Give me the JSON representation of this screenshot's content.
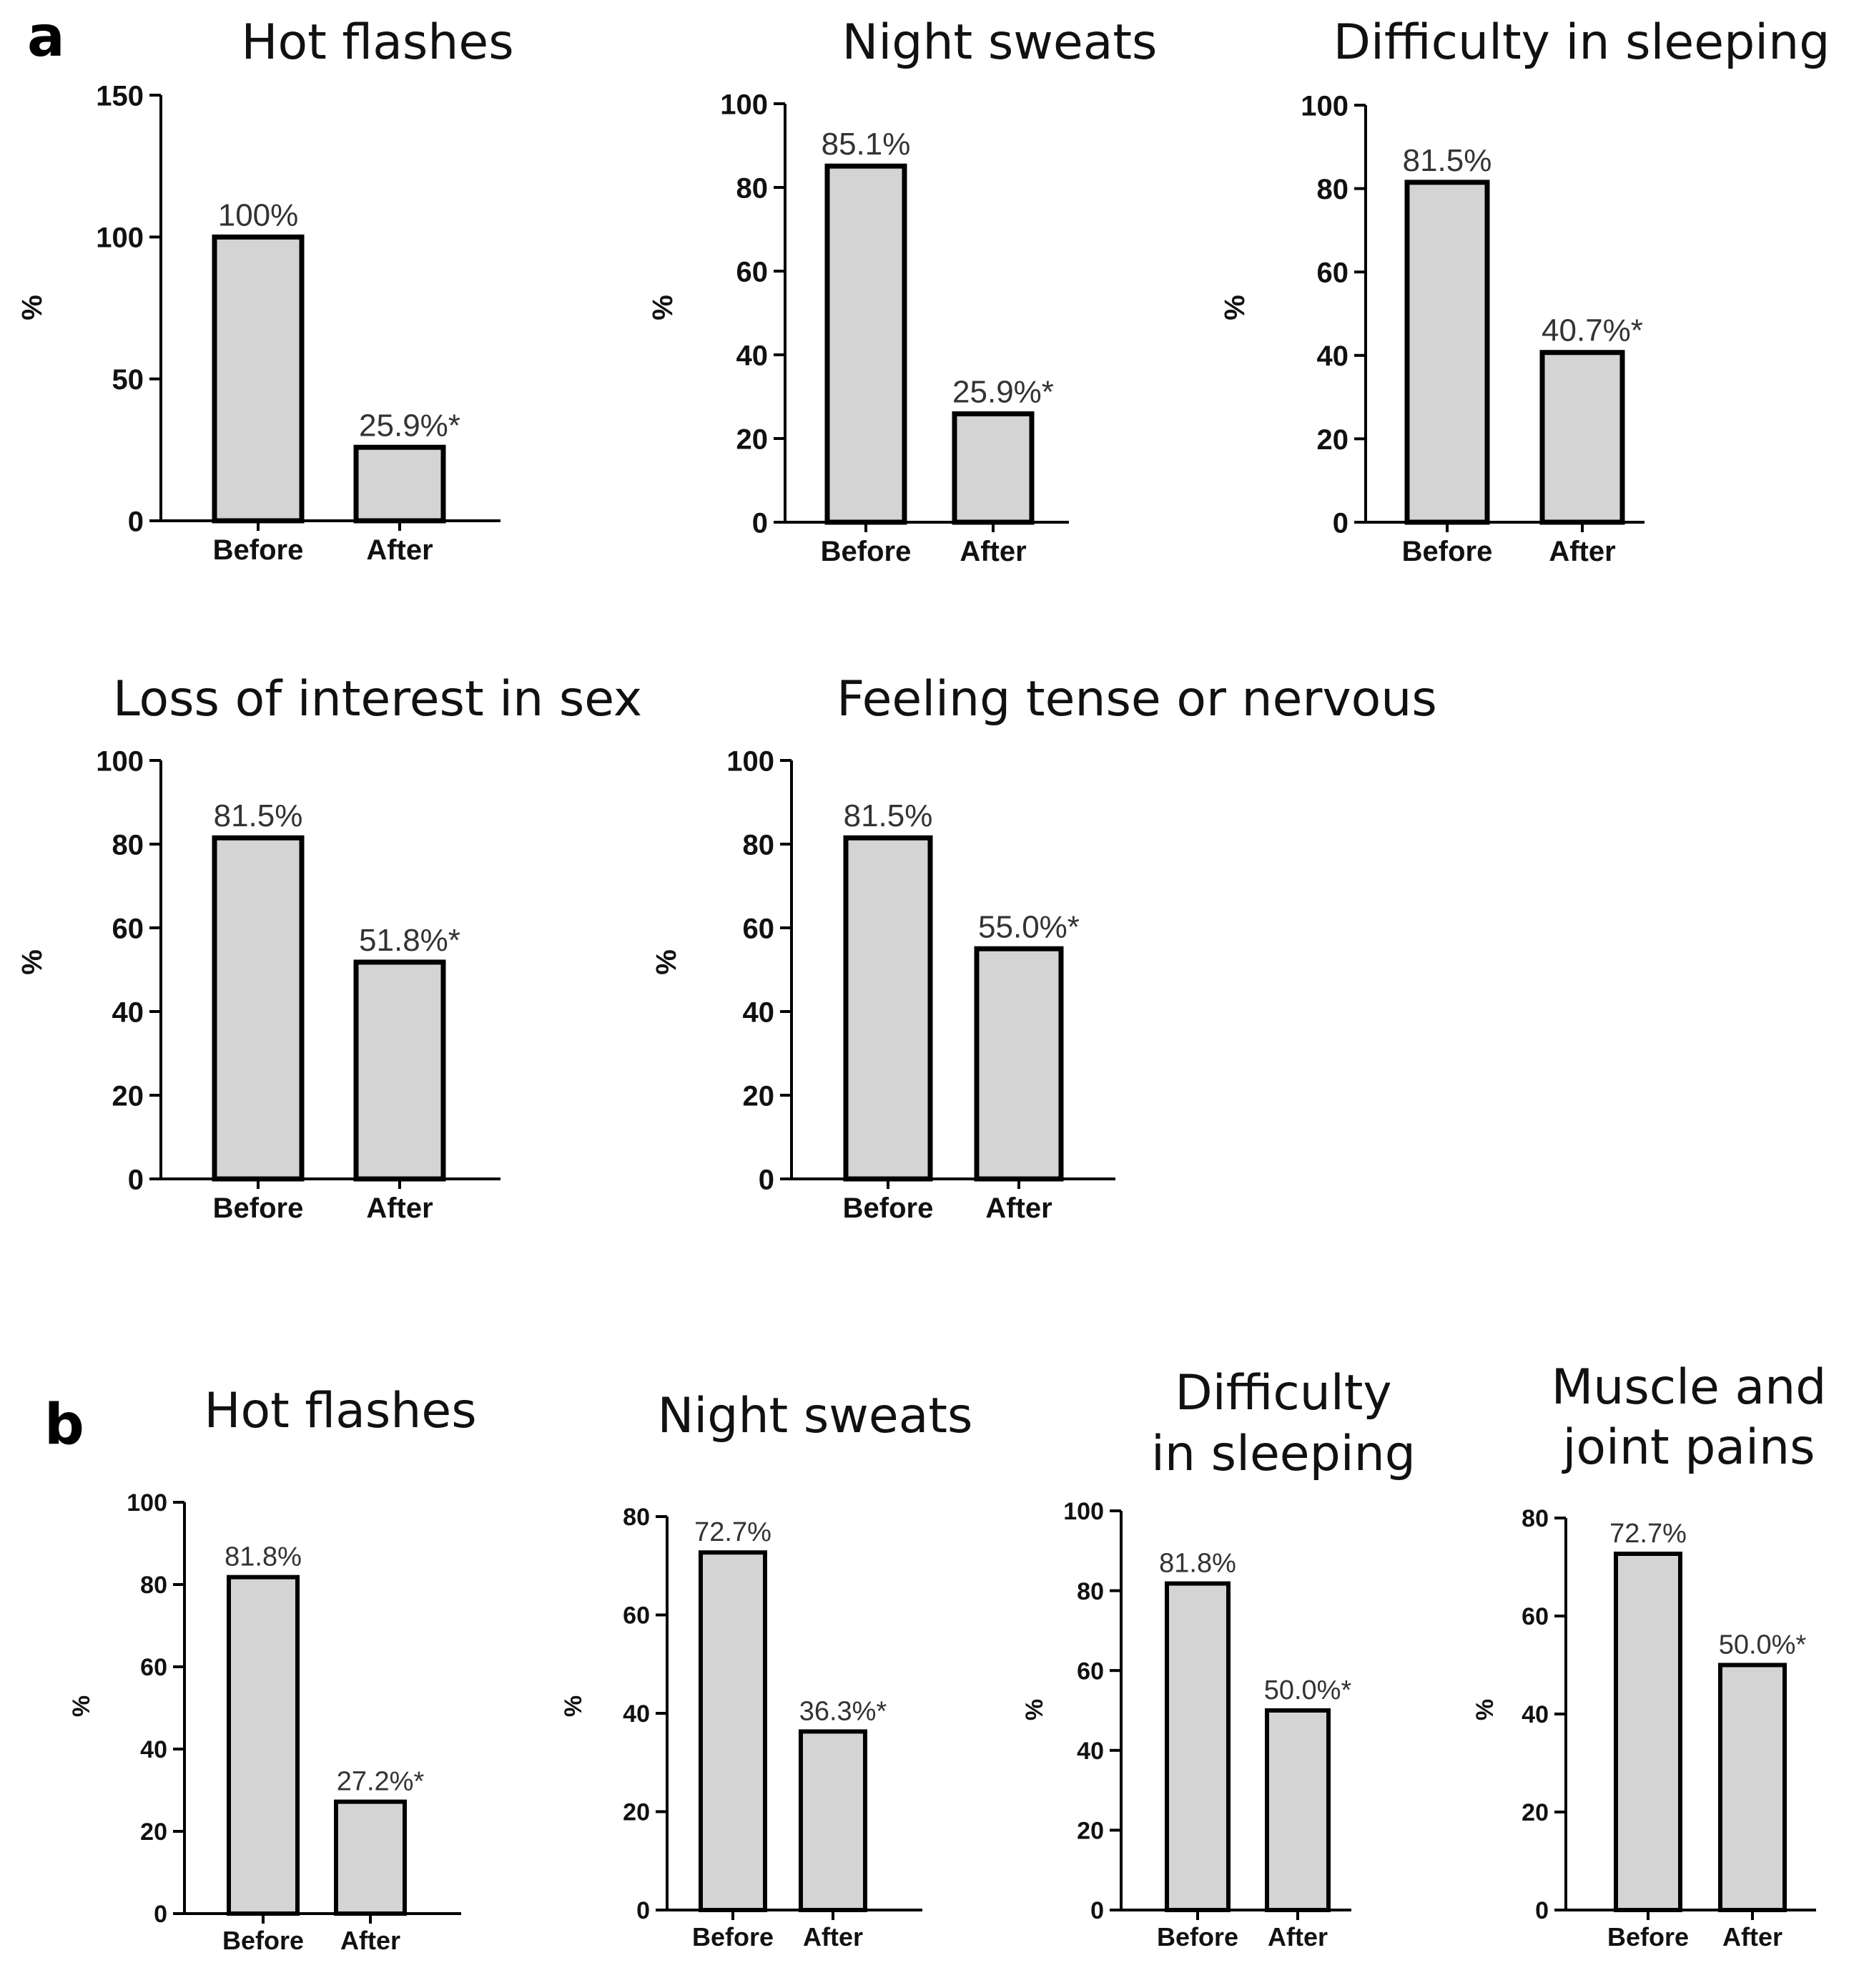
{
  "panels": [
    {
      "letter": "a"
    },
    {
      "letter": "b"
    }
  ],
  "chart_data": [
    {
      "type": "bar",
      "panel": "a",
      "title": [
        "Hot flashes"
      ],
      "ylabel": "%",
      "ylim": [
        0,
        150
      ],
      "yticks": [
        0,
        50,
        100,
        150
      ],
      "categories": [
        "Before",
        "After"
      ],
      "values": [
        100,
        25.9
      ],
      "labels": [
        "100%",
        "25.9%*"
      ]
    },
    {
      "type": "bar",
      "panel": "a",
      "title": [
        "Night sweats"
      ],
      "ylabel": "%",
      "ylim": [
        0,
        100
      ],
      "yticks": [
        0,
        20,
        40,
        60,
        80,
        100
      ],
      "categories": [
        "Before",
        "After"
      ],
      "values": [
        85.1,
        25.9
      ],
      "labels": [
        "85.1%",
        "25.9%*"
      ]
    },
    {
      "type": "bar",
      "panel": "a",
      "title": [
        "Difficulty in sleeping"
      ],
      "ylabel": "%",
      "ylim": [
        0,
        100
      ],
      "yticks": [
        0,
        20,
        40,
        60,
        80,
        100
      ],
      "categories": [
        "Before",
        "After"
      ],
      "values": [
        81.5,
        40.7
      ],
      "labels": [
        "81.5%",
        "40.7%*"
      ]
    },
    {
      "type": "bar",
      "panel": "a",
      "title": [
        "Loss of interest in sex"
      ],
      "ylabel": "%",
      "ylim": [
        0,
        100
      ],
      "yticks": [
        0,
        20,
        40,
        60,
        80,
        100
      ],
      "categories": [
        "Before",
        "After"
      ],
      "values": [
        81.5,
        51.8
      ],
      "labels": [
        "81.5%",
        "51.8%*"
      ]
    },
    {
      "type": "bar",
      "panel": "a",
      "title": [
        "Feeling tense or nervous"
      ],
      "ylabel": "%",
      "ylim": [
        0,
        100
      ],
      "yticks": [
        0,
        20,
        40,
        60,
        80,
        100
      ],
      "categories": [
        "Before",
        "After"
      ],
      "values": [
        81.5,
        55.0
      ],
      "labels": [
        "81.5%",
        "55.0%*"
      ]
    },
    {
      "type": "bar",
      "panel": "b",
      "title": [
        "Hot flashes"
      ],
      "ylabel": "%",
      "ylim": [
        0,
        100
      ],
      "yticks": [
        0,
        20,
        40,
        60,
        80,
        100
      ],
      "categories": [
        "Before",
        "After"
      ],
      "values": [
        81.8,
        27.2
      ],
      "labels": [
        "81.8%",
        "27.2%*"
      ]
    },
    {
      "type": "bar",
      "panel": "b",
      "title": [
        "Night sweats"
      ],
      "ylabel": "%",
      "ylim": [
        0,
        80
      ],
      "yticks": [
        0,
        20,
        40,
        60,
        80
      ],
      "categories": [
        "Before",
        "After"
      ],
      "values": [
        72.7,
        36.3
      ],
      "labels": [
        "72.7%",
        "36.3%*"
      ]
    },
    {
      "type": "bar",
      "panel": "b",
      "title": [
        "Difficulty",
        "in sleeping"
      ],
      "ylabel": "%",
      "ylim": [
        0,
        100
      ],
      "yticks": [
        0,
        20,
        40,
        60,
        80,
        100
      ],
      "categories": [
        "Before",
        "After"
      ],
      "values": [
        81.8,
        50.0
      ],
      "labels": [
        "81.8%",
        "50.0%*"
      ]
    },
    {
      "type": "bar",
      "panel": "b",
      "title": [
        "Muscle and",
        "joint pains"
      ],
      "ylabel": "%",
      "ylim": [
        0,
        80
      ],
      "yticks": [
        0,
        20,
        40,
        60,
        80
      ],
      "categories": [
        "Before",
        "After"
      ],
      "values": [
        72.7,
        50.0
      ],
      "labels": [
        "72.7%",
        "50.0%*"
      ]
    }
  ]
}
